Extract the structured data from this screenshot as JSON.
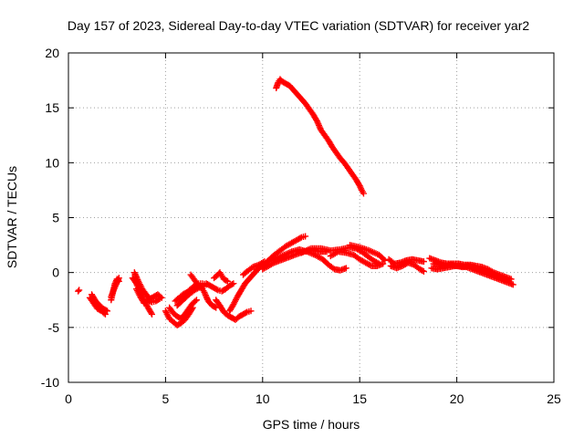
{
  "chart_data": {
    "type": "scatter",
    "title": "Day 157 of 2023, Sidereal Day-to-day VTEC variation (SDTVAR) for receiver yar2",
    "xlabel": "GPS time / hours",
    "ylabel": "SDTVAR / TECUs",
    "xlim": [
      0,
      25
    ],
    "ylim": [
      -10,
      20
    ],
    "xticks": [
      0,
      5,
      10,
      15,
      20,
      25
    ],
    "yticks": [
      -10,
      -5,
      0,
      5,
      10,
      15,
      20
    ],
    "xtick_labels": [
      "0",
      "5",
      "10",
      "15",
      "20",
      "25"
    ],
    "ytick_labels": [
      "-10",
      "-5",
      "0",
      "5",
      "10",
      "15",
      "20"
    ],
    "grid": true,
    "marker": "+",
    "color": "#ff0000",
    "series": [
      {
        "name": "SDTVAR",
        "segments": [
          [
            [
              0.5,
              -1.7
            ],
            [
              0.55,
              -1.6
            ]
          ],
          [
            [
              1.1,
              -2.3
            ],
            [
              1.3,
              -2.8
            ],
            [
              1.5,
              -3.3
            ],
            [
              1.7,
              -3.5
            ],
            [
              1.9,
              -3.8
            ]
          ],
          [
            [
              1.2,
              -2.0
            ],
            [
              1.4,
              -2.6
            ],
            [
              1.6,
              -3.0
            ],
            [
              1.8,
              -3.3
            ],
            [
              2.0,
              -3.5
            ]
          ],
          [
            [
              2.2,
              -2.5
            ],
            [
              2.3,
              -1.7
            ],
            [
              2.4,
              -1.0
            ],
            [
              2.5,
              -0.6
            ],
            [
              2.6,
              -0.8
            ]
          ],
          [
            [
              2.2,
              -2.2
            ],
            [
              2.4,
              -1.3
            ],
            [
              2.6,
              -0.5
            ]
          ],
          [
            [
              3.3,
              -0.5
            ],
            [
              3.5,
              -1.0
            ],
            [
              3.7,
              -1.8
            ],
            [
              3.9,
              -2.5
            ],
            [
              4.1,
              -3.2
            ],
            [
              4.3,
              -3.8
            ]
          ],
          [
            [
              3.4,
              0.0
            ],
            [
              3.6,
              -0.8
            ],
            [
              3.8,
              -1.5
            ],
            [
              4.0,
              -2.0
            ],
            [
              4.2,
              -2.4
            ],
            [
              4.4,
              -2.2
            ],
            [
              4.6,
              -2.0
            ],
            [
              4.8,
              -2.3
            ]
          ],
          [
            [
              3.5,
              -1.5
            ],
            [
              3.7,
              -2.2
            ],
            [
              3.9,
              -2.8
            ],
            [
              4.1,
              -2.5
            ],
            [
              4.3,
              -2.7
            ],
            [
              4.5,
              -2.6
            ],
            [
              4.7,
              -2.4
            ]
          ],
          [
            [
              5.0,
              -3.5
            ],
            [
              5.2,
              -4.2
            ],
            [
              5.4,
              -4.5
            ],
            [
              5.6,
              -4.8
            ],
            [
              5.8,
              -4.6
            ],
            [
              6.0,
              -4.3
            ],
            [
              6.2,
              -3.8
            ],
            [
              6.4,
              -3.2
            ]
          ],
          [
            [
              5.2,
              -3.2
            ],
            [
              5.4,
              -3.7
            ],
            [
              5.6,
              -4.0
            ],
            [
              5.8,
              -4.2
            ],
            [
              6.0,
              -3.8
            ],
            [
              6.2,
              -3.3
            ],
            [
              6.4,
              -2.8
            ],
            [
              6.6,
              -2.5
            ]
          ],
          [
            [
              5.5,
              -2.6
            ],
            [
              5.7,
              -2.3
            ],
            [
              5.9,
              -2.0
            ],
            [
              6.1,
              -1.8
            ],
            [
              6.3,
              -1.5
            ],
            [
              6.5,
              -1.2
            ],
            [
              6.7,
              -1.0
            ],
            [
              6.9,
              -1.0
            ],
            [
              7.1,
              -1.1
            ]
          ],
          [
            [
              5.6,
              -3.0
            ],
            [
              5.9,
              -2.5
            ],
            [
              6.2,
              -2.0
            ],
            [
              6.5,
              -1.6
            ],
            [
              6.8,
              -1.3
            ],
            [
              7.0,
              -1.2
            ]
          ],
          [
            [
              6.3,
              -0.2
            ],
            [
              6.5,
              -0.7
            ],
            [
              6.7,
              -1.2
            ],
            [
              6.9,
              -1.5
            ],
            [
              7.0,
              -1.8
            ],
            [
              7.1,
              -2.2
            ],
            [
              7.2,
              -2.6
            ],
            [
              7.4,
              -3.0
            ],
            [
              7.6,
              -3.2
            ]
          ],
          [
            [
              7.1,
              -1.0
            ],
            [
              7.3,
              -1.2
            ],
            [
              7.5,
              -1.4
            ],
            [
              7.7,
              -1.6
            ],
            [
              7.9,
              -1.7
            ],
            [
              8.1,
              -1.5
            ],
            [
              8.3,
              -1.2
            ],
            [
              8.5,
              -1.0
            ]
          ],
          [
            [
              7.5,
              -0.5
            ],
            [
              7.7,
              -0.2
            ],
            [
              7.8,
              0.0
            ],
            [
              7.9,
              -0.3
            ],
            [
              8.0,
              -0.6
            ],
            [
              8.2,
              -0.8
            ]
          ],
          [
            [
              7.6,
              -2.5
            ],
            [
              7.8,
              -3.0
            ],
            [
              8.0,
              -3.6
            ],
            [
              8.2,
              -3.9
            ],
            [
              8.4,
              -4.1
            ],
            [
              8.6,
              -4.3
            ],
            [
              8.8,
              -4.0
            ],
            [
              9.0,
              -3.8
            ],
            [
              9.2,
              -3.6
            ],
            [
              9.4,
              -3.5
            ]
          ],
          [
            [
              8.3,
              -3.5
            ],
            [
              8.5,
              -2.9
            ],
            [
              8.7,
              -2.2
            ],
            [
              8.9,
              -1.6
            ],
            [
              9.1,
              -1.0
            ],
            [
              9.3,
              -0.6
            ],
            [
              9.5,
              -0.2
            ],
            [
              9.7,
              0.2
            ],
            [
              9.9,
              0.6
            ]
          ],
          [
            [
              9.0,
              -0.2
            ],
            [
              9.2,
              0.1
            ],
            [
              9.5,
              0.5
            ],
            [
              9.8,
              0.7
            ],
            [
              10.1,
              1.0
            ]
          ],
          [
            [
              10.0,
              0.6
            ],
            [
              10.3,
              1.1
            ],
            [
              10.6,
              1.6
            ],
            [
              10.9,
              2.0
            ],
            [
              11.2,
              2.4
            ],
            [
              11.5,
              2.7
            ],
            [
              11.8,
              3.0
            ],
            [
              12.0,
              3.2
            ],
            [
              12.2,
              3.3
            ]
          ],
          [
            [
              10.0,
              0.3
            ],
            [
              10.3,
              0.6
            ],
            [
              10.6,
              0.9
            ],
            [
              10.9,
              1.1
            ],
            [
              11.2,
              1.3
            ],
            [
              11.5,
              1.5
            ],
            [
              11.8,
              1.7
            ],
            [
              12.1,
              1.9
            ],
            [
              12.4,
              2.0
            ],
            [
              12.7,
              2.0
            ],
            [
              13.0,
              1.9
            ],
            [
              13.3,
              1.9
            ]
          ],
          [
            [
              10.3,
              1.0
            ],
            [
              10.7,
              1.3
            ],
            [
              11.1,
              1.6
            ],
            [
              11.5,
              1.9
            ],
            [
              11.9,
              2.1
            ],
            [
              12.3,
              1.9
            ],
            [
              12.7,
              1.6
            ],
            [
              13.1,
              1.2
            ],
            [
              13.4,
              0.7
            ],
            [
              13.7,
              0.3
            ],
            [
              14.0,
              0.2
            ],
            [
              14.3,
              0.4
            ]
          ],
          [
            [
              12.0,
              1.8
            ],
            [
              12.5,
              2.2
            ],
            [
              13.0,
              2.2
            ],
            [
              13.5,
              2.0
            ],
            [
              14.0,
              2.1
            ],
            [
              14.5,
              2.3
            ],
            [
              14.8,
              2.2
            ],
            [
              15.1,
              1.9
            ],
            [
              15.4,
              1.5
            ],
            [
              15.7,
              1.1
            ],
            [
              16.0,
              0.8
            ]
          ],
          [
            [
              13.5,
              1.5
            ],
            [
              13.9,
              1.9
            ],
            [
              14.3,
              1.8
            ],
            [
              14.7,
              1.6
            ],
            [
              15.0,
              1.2
            ],
            [
              15.3,
              0.9
            ],
            [
              15.6,
              0.6
            ],
            [
              15.9,
              0.6
            ],
            [
              16.2,
              0.8
            ]
          ],
          [
            [
              14.5,
              2.5
            ],
            [
              15.0,
              2.3
            ],
            [
              15.5,
              2.0
            ],
            [
              16.0,
              1.6
            ],
            [
              16.3,
              1.1
            ]
          ],
          [
            [
              10.7,
              16.8
            ],
            [
              10.8,
              17.3
            ],
            [
              10.9,
              17.6
            ],
            [
              11.0,
              17.4
            ],
            [
              11.2,
              17.2
            ],
            [
              11.4,
              17.0
            ],
            [
              11.6,
              16.6
            ],
            [
              11.8,
              16.2
            ],
            [
              12.0,
              15.8
            ],
            [
              12.2,
              15.4
            ],
            [
              12.4,
              14.9
            ],
            [
              12.6,
              14.4
            ],
            [
              12.8,
              13.8
            ],
            [
              13.0,
              13.0
            ],
            [
              13.2,
              12.5
            ],
            [
              13.4,
              12.0
            ],
            [
              13.6,
              11.4
            ],
            [
              13.8,
              10.9
            ],
            [
              14.0,
              10.4
            ],
            [
              14.2,
              10.0
            ],
            [
              14.4,
              9.5
            ],
            [
              14.6,
              9.0
            ],
            [
              14.8,
              8.5
            ],
            [
              15.0,
              7.9
            ],
            [
              15.1,
              7.5
            ],
            [
              15.2,
              7.2
            ]
          ],
          [
            [
              16.5,
              1.2
            ],
            [
              16.8,
              0.8
            ],
            [
              17.1,
              0.9
            ],
            [
              17.4,
              1.1
            ],
            [
              17.7,
              1.2
            ],
            [
              18.0,
              1.1
            ],
            [
              18.3,
              1.0
            ]
          ],
          [
            [
              16.6,
              0.6
            ],
            [
              16.9,
              0.4
            ],
            [
              17.2,
              0.6
            ],
            [
              17.5,
              0.9
            ],
            [
              17.8,
              0.7
            ],
            [
              18.1,
              0.3
            ],
            [
              18.3,
              0.1
            ]
          ],
          [
            [
              18.6,
              1.3
            ],
            [
              18.9,
              1.1
            ],
            [
              19.2,
              0.9
            ],
            [
              19.5,
              0.8
            ],
            [
              19.8,
              0.8
            ],
            [
              20.1,
              0.8
            ],
            [
              20.4,
              0.7
            ],
            [
              20.7,
              0.7
            ],
            [
              21.0,
              0.6
            ],
            [
              21.3,
              0.5
            ],
            [
              21.6,
              0.3
            ],
            [
              21.9,
              0.0
            ],
            [
              22.2,
              -0.2
            ],
            [
              22.5,
              -0.4
            ],
            [
              22.8,
              -0.6
            ]
          ],
          [
            [
              18.7,
              0.4
            ],
            [
              19.0,
              0.3
            ],
            [
              19.3,
              0.4
            ],
            [
              19.6,
              0.5
            ],
            [
              19.9,
              0.6
            ],
            [
              20.2,
              0.6
            ],
            [
              20.5,
              0.5
            ],
            [
              20.8,
              0.3
            ],
            [
              21.1,
              0.1
            ],
            [
              21.4,
              -0.1
            ],
            [
              21.7,
              -0.3
            ],
            [
              22.0,
              -0.5
            ],
            [
              22.3,
              -0.7
            ],
            [
              22.6,
              -0.9
            ],
            [
              22.9,
              -1.1
            ]
          ],
          [
            [
              18.8,
              0.8
            ],
            [
              19.1,
              0.7
            ],
            [
              19.4,
              0.6
            ],
            [
              19.7,
              0.7
            ],
            [
              20.0,
              0.6
            ],
            [
              20.3,
              0.5
            ],
            [
              20.6,
              0.6
            ],
            [
              20.9,
              0.5
            ],
            [
              21.2,
              0.3
            ],
            [
              21.5,
              0.1
            ],
            [
              21.8,
              -0.2
            ],
            [
              22.1,
              -0.4
            ],
            [
              22.4,
              -0.5
            ],
            [
              22.7,
              -0.8
            ]
          ]
        ]
      }
    ]
  }
}
